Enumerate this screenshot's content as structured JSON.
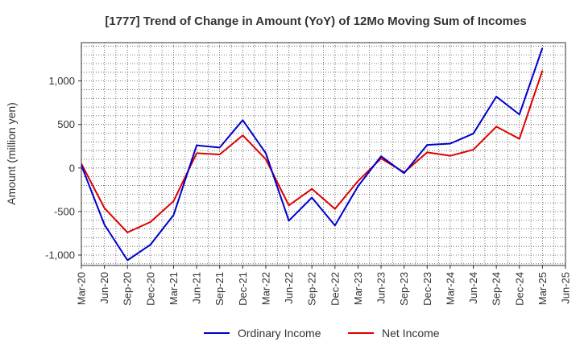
{
  "chart_data": {
    "type": "line",
    "title": "[1777]  Trend of Change in Amount (YoY) of 12Mo Moving Sum of Incomes",
    "xlabel": "",
    "ylabel": "Amount (million yen)",
    "categories": [
      "Mar-20",
      "Jun-20",
      "Sep-20",
      "Dec-20",
      "Mar-21",
      "Jun-21",
      "Sep-21",
      "Dec-21",
      "Mar-22",
      "Jun-22",
      "Sep-22",
      "Dec-22",
      "Mar-23",
      "Jun-23",
      "Sep-23",
      "Dec-23",
      "Mar-24",
      "Jun-24",
      "Sep-24",
      "Dec-24",
      "Mar-25",
      "Jun-25"
    ],
    "ylim": [
      -1120,
      1440
    ],
    "yticks": [
      -1000,
      -500,
      0,
      500,
      1000
    ],
    "ytick_labels": [
      "-1,000",
      "-500",
      "0",
      "500",
      "1,000"
    ],
    "grid": true,
    "legend_position": "bottom-center",
    "series": [
      {
        "name": "Ordinary Income",
        "color": "#0000cc",
        "values": [
          30,
          -650,
          -1060,
          -880,
          -540,
          260,
          235,
          550,
          170,
          -605,
          -340,
          -660,
          -210,
          135,
          -60,
          265,
          280,
          395,
          820,
          615,
          1380,
          null
        ]
      },
      {
        "name": "Net Income",
        "color": "#dd0000",
        "values": [
          50,
          -460,
          -740,
          -620,
          -380,
          170,
          155,
          375,
          100,
          -430,
          -240,
          -470,
          -150,
          110,
          -50,
          180,
          140,
          210,
          475,
          335,
          1120,
          null
        ]
      }
    ]
  }
}
